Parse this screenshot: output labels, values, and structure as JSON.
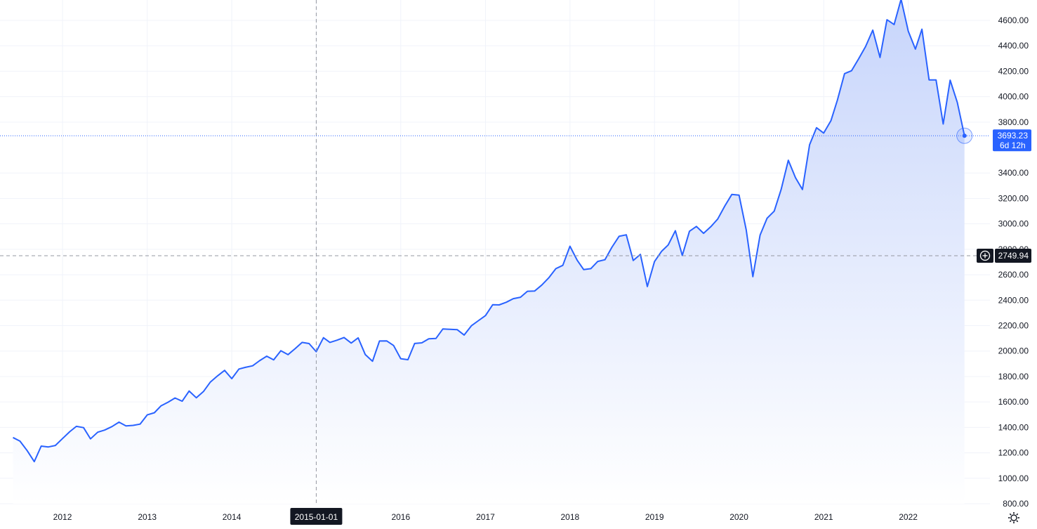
{
  "chart_data": {
    "type": "area",
    "x_tick_labels": [
      "2012",
      "2013",
      "2014",
      "2015-01-01",
      "2016",
      "2017",
      "2018",
      "2019",
      "2020",
      "2021",
      "2022"
    ],
    "y_tick_labels": [
      "800.00",
      "1000.00",
      "1200.00",
      "1400.00",
      "1600.00",
      "1800.00",
      "2000.00",
      "2200.00",
      "2400.00",
      "2600.00",
      "2800.00",
      "3000.00",
      "3200.00",
      "3400.00",
      "3800.00",
      "4000.00",
      "4200.00",
      "4400.00",
      "4600.00"
    ],
    "ylim": [
      800,
      4760
    ],
    "xlim": [
      "2011-04-06",
      "2022-12-20"
    ],
    "grid": true,
    "series": [
      {
        "dates": [
          "2011-06-01",
          "2011-07-01",
          "2011-08-01",
          "2011-09-01",
          "2011-10-01",
          "2011-11-01",
          "2011-12-01",
          "2012-01-01",
          "2012-02-01",
          "2012-03-01",
          "2012-04-01",
          "2012-05-01",
          "2012-06-01",
          "2012-07-01",
          "2012-08-01",
          "2012-09-01",
          "2012-10-01",
          "2012-11-01",
          "2012-12-01",
          "2013-01-01",
          "2013-02-01",
          "2013-03-01",
          "2013-04-01",
          "2013-05-01",
          "2013-06-01",
          "2013-07-01",
          "2013-08-01",
          "2013-09-01",
          "2013-10-01",
          "2013-11-01",
          "2013-12-01",
          "2014-01-01",
          "2014-02-01",
          "2014-03-01",
          "2014-04-01",
          "2014-05-01",
          "2014-06-01",
          "2014-07-01",
          "2014-08-01",
          "2014-09-01",
          "2014-10-01",
          "2014-11-01",
          "2014-12-01",
          "2015-01-01",
          "2015-02-01",
          "2015-03-01",
          "2015-04-01",
          "2015-05-01",
          "2015-06-01",
          "2015-07-01",
          "2015-08-01",
          "2015-09-01",
          "2015-10-01",
          "2015-11-01",
          "2015-12-01",
          "2016-01-01",
          "2016-02-01",
          "2016-03-01",
          "2016-04-01",
          "2016-05-01",
          "2016-06-01",
          "2016-07-01",
          "2016-08-01",
          "2016-09-01",
          "2016-10-01",
          "2016-11-01",
          "2016-12-01",
          "2017-01-01",
          "2017-02-01",
          "2017-03-01",
          "2017-04-01",
          "2017-05-01",
          "2017-06-01",
          "2017-07-01",
          "2017-08-01",
          "2017-09-01",
          "2017-10-01",
          "2017-11-01",
          "2017-12-01",
          "2018-01-01",
          "2018-02-01",
          "2018-03-01",
          "2018-04-01",
          "2018-05-01",
          "2018-06-01",
          "2018-07-01",
          "2018-08-01",
          "2018-09-01",
          "2018-10-01",
          "2018-11-01",
          "2018-12-01",
          "2019-01-01",
          "2019-02-01",
          "2019-03-01",
          "2019-04-01",
          "2019-05-01",
          "2019-06-01",
          "2019-07-01",
          "2019-08-01",
          "2019-09-01",
          "2019-10-01",
          "2019-11-01",
          "2019-12-01",
          "2020-01-01",
          "2020-02-01",
          "2020-03-01",
          "2020-04-01",
          "2020-05-01",
          "2020-06-01",
          "2020-07-01",
          "2020-08-01",
          "2020-09-01",
          "2020-10-01",
          "2020-11-01",
          "2020-12-01",
          "2021-01-01",
          "2021-02-01",
          "2021-03-01",
          "2021-04-01",
          "2021-05-01",
          "2021-06-01",
          "2021-07-01",
          "2021-08-01",
          "2021-09-01",
          "2021-10-01",
          "2021-11-01",
          "2021-12-01",
          "2022-01-01",
          "2022-02-01",
          "2022-03-01",
          "2022-04-01",
          "2022-05-01",
          "2022-06-01",
          "2022-07-01",
          "2022-08-01",
          "2022-09-01"
        ],
        "values": [
          1320,
          1292,
          1218,
          1131,
          1253,
          1246,
          1258,
          1312,
          1366,
          1408,
          1398,
          1310,
          1362,
          1379,
          1406,
          1441,
          1412,
          1416,
          1426,
          1498,
          1515,
          1569,
          1598,
          1631,
          1606,
          1686,
          1633,
          1682,
          1757,
          1806,
          1848,
          1783,
          1859,
          1872,
          1884,
          1924,
          1960,
          1931,
          2003,
          1972,
          2018,
          2068,
          2059,
          1995,
          2105,
          2068,
          2086,
          2107,
          2063,
          2104,
          1972,
          1920,
          2079,
          2080,
          2044,
          1940,
          1932,
          2060,
          2065,
          2097,
          2099,
          2174,
          2171,
          2168,
          2126,
          2199,
          2239,
          2279,
          2364,
          2363,
          2384,
          2412,
          2423,
          2470,
          2472,
          2519,
          2575,
          2648,
          2674,
          2824,
          2714,
          2641,
          2648,
          2705,
          2718,
          2816,
          2902,
          2914,
          2712,
          2760,
          2507,
          2704,
          2785,
          2834,
          2946,
          2752,
          2942,
          2980,
          2926,
          2977,
          3038,
          3141,
          3231,
          3226,
          2954,
          2585,
          2912,
          3044,
          3100,
          3271,
          3500,
          3363,
          3270,
          3622,
          3756,
          3714,
          3811,
          3973,
          4181,
          4204,
          4298,
          4395,
          4523,
          4308,
          4605,
          4567,
          4766,
          4516,
          4374,
          4530,
          4132,
          4132,
          3785,
          4130,
          3955,
          3693
        ]
      }
    ],
    "last_value_label": "3693.23",
    "last_value_countdown": "6d 12h",
    "crosshair": {
      "x_label": "2015-01-01",
      "y_label": "2749.94",
      "y_value": 2749.94
    },
    "colors": {
      "line": "#2962ff",
      "area_top": "#c7d5fb",
      "area_bottom": "#ffffff",
      "crosshair": "#9598a1",
      "tag_dark": "#131722"
    }
  },
  "icons": {
    "settings": "gear-icon",
    "crosshair_add": "plus-circle-icon"
  }
}
